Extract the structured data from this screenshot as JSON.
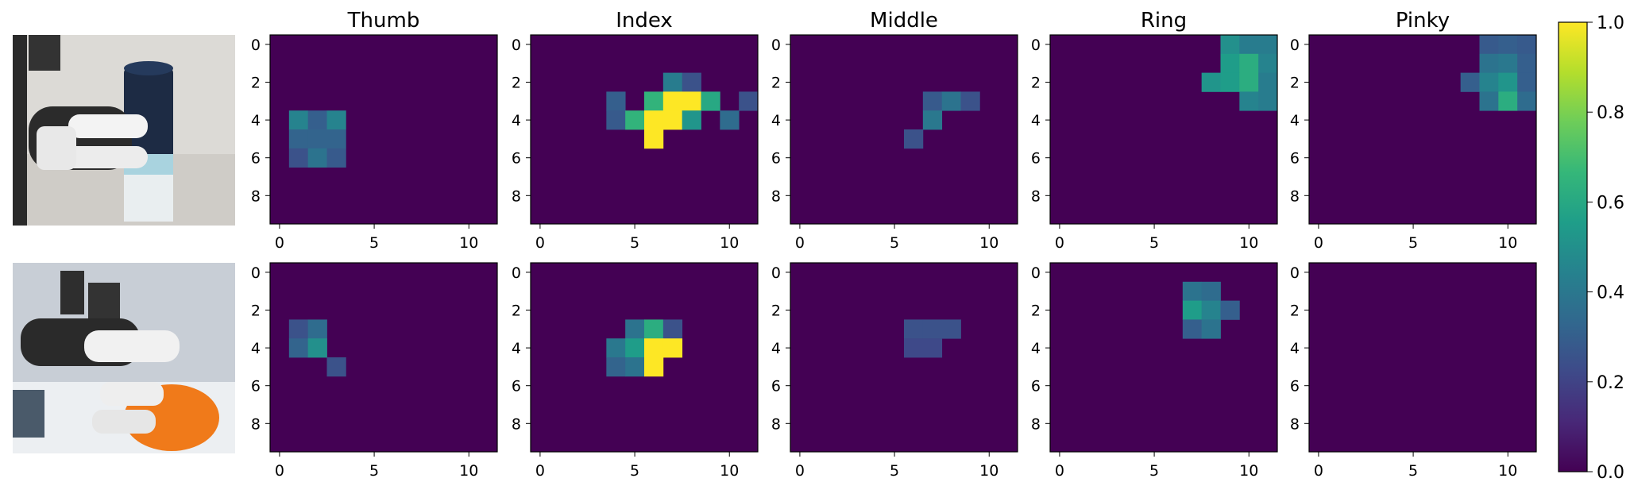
{
  "chart_data": {
    "type": "heatmap",
    "grid": {
      "rows": 10,
      "cols": 12
    },
    "fingers": [
      "Thumb",
      "Index",
      "Middle",
      "Ring",
      "Pinky"
    ],
    "x_ticks": [
      0,
      5,
      10
    ],
    "y_ticks": [
      0,
      2,
      4,
      6,
      8
    ],
    "colormap": "viridis",
    "background_value": 0.0,
    "colorbar": {
      "min": 0.0,
      "max": 1.0,
      "ticks": [
        "0.0",
        "0.2",
        "0.4",
        "0.6",
        "0.8",
        "1.0"
      ]
    },
    "rows": [
      {
        "object": "cylindrical bottle grasp",
        "panels": [
          {
            "finger": "Thumb",
            "cells": [
              [
                4,
                1,
                0.45
              ],
              [
                4,
                2,
                0.3
              ],
              [
                4,
                3,
                0.45
              ],
              [
                5,
                1,
                0.32
              ],
              [
                5,
                2,
                0.32
              ],
              [
                5,
                3,
                0.32
              ],
              [
                6,
                1,
                0.25
              ],
              [
                6,
                2,
                0.38
              ],
              [
                6,
                3,
                0.28
              ]
            ]
          },
          {
            "finger": "Index",
            "cells": [
              [
                2,
                7,
                0.42
              ],
              [
                2,
                8,
                0.25
              ],
              [
                3,
                4,
                0.3
              ],
              [
                3,
                6,
                0.65
              ],
              [
                3,
                7,
                1.0
              ],
              [
                3,
                8,
                1.0
              ],
              [
                3,
                9,
                0.6
              ],
              [
                3,
                11,
                0.25
              ],
              [
                4,
                4,
                0.28
              ],
              [
                4,
                5,
                0.65
              ],
              [
                4,
                6,
                1.0
              ],
              [
                4,
                7,
                1.0
              ],
              [
                4,
                8,
                0.52
              ],
              [
                4,
                10,
                0.35
              ],
              [
                5,
                6,
                1.0
              ]
            ]
          },
          {
            "finger": "Middle",
            "cells": [
              [
                3,
                7,
                0.28
              ],
              [
                3,
                8,
                0.38
              ],
              [
                3,
                9,
                0.25
              ],
              [
                4,
                7,
                0.4
              ],
              [
                5,
                6,
                0.25
              ]
            ]
          },
          {
            "finger": "Ring",
            "cells": [
              [
                0,
                9,
                0.5
              ],
              [
                0,
                10,
                0.42
              ],
              [
                0,
                11,
                0.42
              ],
              [
                1,
                9,
                0.55
              ],
              [
                1,
                10,
                0.62
              ],
              [
                1,
                11,
                0.45
              ],
              [
                2,
                8,
                0.52
              ],
              [
                2,
                9,
                0.55
              ],
              [
                2,
                10,
                0.62
              ],
              [
                2,
                11,
                0.42
              ],
              [
                3,
                10,
                0.45
              ],
              [
                3,
                11,
                0.42
              ]
            ]
          },
          {
            "finger": "Pinky",
            "cells": [
              [
                0,
                9,
                0.28
              ],
              [
                0,
                10,
                0.3
              ],
              [
                0,
                11,
                0.28
              ],
              [
                1,
                9,
                0.38
              ],
              [
                1,
                10,
                0.4
              ],
              [
                1,
                11,
                0.3
              ],
              [
                2,
                8,
                0.3
              ],
              [
                2,
                9,
                0.45
              ],
              [
                2,
                10,
                0.52
              ],
              [
                2,
                11,
                0.3
              ],
              [
                3,
                9,
                0.38
              ],
              [
                3,
                10,
                0.62
              ],
              [
                3,
                11,
                0.35
              ]
            ]
          }
        ]
      },
      {
        "object": "orange fruit grasp",
        "panels": [
          {
            "finger": "Thumb",
            "cells": [
              [
                3,
                1,
                0.25
              ],
              [
                3,
                2,
                0.35
              ],
              [
                4,
                1,
                0.32
              ],
              [
                4,
                2,
                0.5
              ],
              [
                5,
                3,
                0.25
              ]
            ]
          },
          {
            "finger": "Index",
            "cells": [
              [
                3,
                5,
                0.38
              ],
              [
                3,
                6,
                0.62
              ],
              [
                3,
                7,
                0.25
              ],
              [
                4,
                4,
                0.4
              ],
              [
                4,
                5,
                0.55
              ],
              [
                4,
                6,
                1.0
              ],
              [
                4,
                7,
                1.0
              ],
              [
                5,
                4,
                0.32
              ],
              [
                5,
                5,
                0.38
              ],
              [
                5,
                6,
                1.0
              ]
            ]
          },
          {
            "finger": "Middle",
            "cells": [
              [
                3,
                6,
                0.25
              ],
              [
                3,
                7,
                0.25
              ],
              [
                3,
                8,
                0.25
              ],
              [
                4,
                6,
                0.22
              ],
              [
                4,
                7,
                0.22
              ]
            ]
          },
          {
            "finger": "Ring",
            "cells": [
              [
                1,
                7,
                0.38
              ],
              [
                1,
                8,
                0.35
              ],
              [
                2,
                7,
                0.55
              ],
              [
                2,
                8,
                0.45
              ],
              [
                2,
                9,
                0.3
              ],
              [
                3,
                7,
                0.3
              ],
              [
                3,
                8,
                0.38
              ]
            ]
          },
          {
            "finger": "Pinky",
            "cells": []
          }
        ]
      }
    ]
  }
}
